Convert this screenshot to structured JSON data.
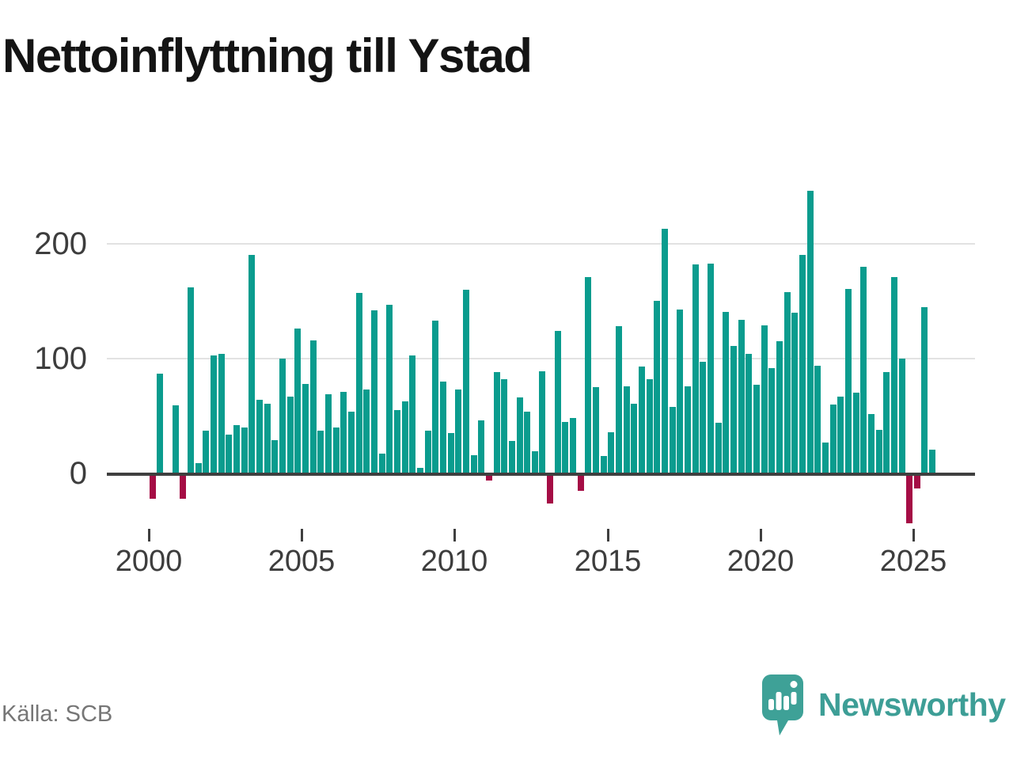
{
  "title": "Nettoinflyttning till Ystad",
  "source": "Källa: SCB",
  "brand": {
    "name": "Newsworthy",
    "color": "#3d9e96"
  },
  "chart_data": {
    "type": "bar",
    "title": "Nettoinflyttning till Ystad",
    "xlabel": "",
    "ylabel": "",
    "grid": "horizontal",
    "legend": "none",
    "ylim": [
      -60,
      260
    ],
    "y_ticks": [
      0,
      100,
      200
    ],
    "x_ticks": [
      2000,
      2005,
      2010,
      2015,
      2020,
      2025
    ],
    "start_period": "2000Q1",
    "period_type": "quarter",
    "positive_color": "#0a9c8e",
    "negative_color": "#a50d45",
    "values": [
      -21,
      87,
      0,
      59,
      -21,
      162,
      9,
      37,
      103,
      104,
      34,
      42,
      40,
      190,
      64,
      61,
      29,
      100,
      67,
      126,
      78,
      116,
      37,
      69,
      40,
      71,
      54,
      157,
      73,
      142,
      17,
      147,
      55,
      63,
      103,
      5,
      37,
      133,
      80,
      35,
      73,
      160,
      16,
      46,
      -5,
      88,
      82,
      28,
      66,
      54,
      19,
      89,
      -25,
      124,
      45,
      48,
      -14,
      171,
      75,
      15,
      36,
      128,
      76,
      61,
      93,
      82,
      150,
      213,
      58,
      143,
      76,
      182,
      97,
      183,
      44,
      141,
      111,
      134,
      104,
      77,
      129,
      92,
      115,
      158,
      140,
      190,
      246,
      94,
      27,
      60,
      67,
      161,
      70,
      180,
      52,
      38,
      88,
      171,
      100,
      -42,
      -12,
      145,
      21
    ]
  }
}
